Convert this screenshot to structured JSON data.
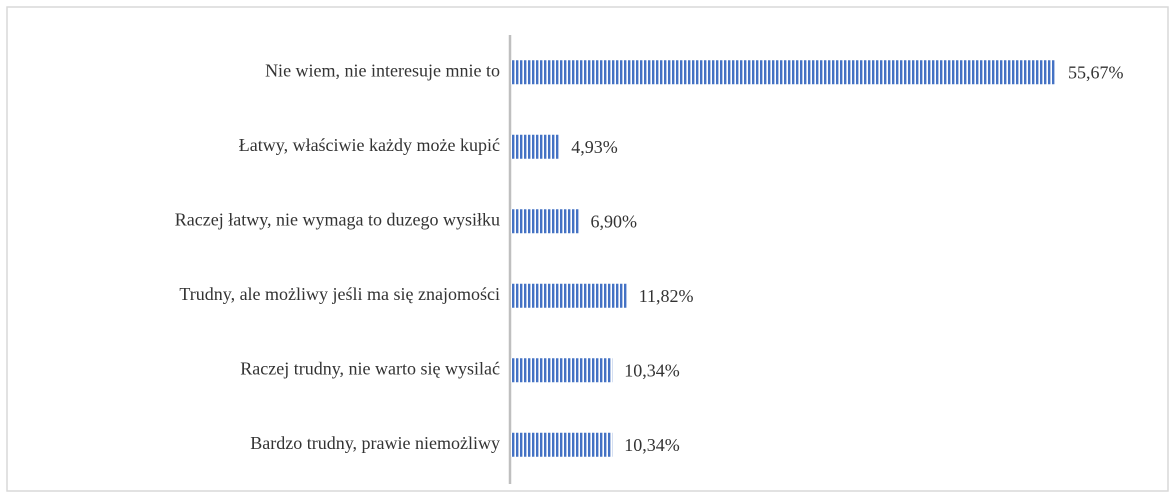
{
  "chart_data": {
    "type": "bar",
    "orientation": "horizontal",
    "categories": [
      "Nie wiem, nie interesuje mnie to",
      "Łatwy, właściwie każdy może kupić",
      "Raczej łatwy, nie wymaga to duzego wysiłku",
      "Trudny, ale możliwy jeśli ma się znajomości",
      "Raczej trudny, nie warto się wysilać",
      "Bardzo trudny, prawie niemożliwy"
    ],
    "values": [
      55.67,
      4.93,
      6.9,
      11.82,
      10.34,
      10.34
    ],
    "value_labels": [
      "55,67%",
      "4,93%",
      "6,90%",
      "11,82%",
      "10,34%",
      "10,34%"
    ],
    "color": "#4472c4"
  }
}
